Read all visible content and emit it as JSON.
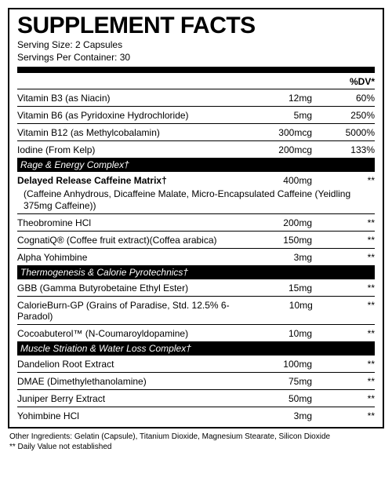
{
  "title": "SUPPLEMENT FACTS",
  "serving_size_label": "Serving Size: 2 Capsules",
  "servings_per_container_label": "Servings Per Container: 30",
  "dv_header": "%DV*",
  "top_rows": [
    {
      "name": "Vitamin B3 (as Niacin)",
      "amount": "12mg",
      "dv": "60%"
    },
    {
      "name": "Vitamin B6 (as Pyridoxine Hydrochloride)",
      "amount": "5mg",
      "dv": "250%"
    },
    {
      "name": "Vitamin B12 (as Methylcobalamin)",
      "amount": "300mcg",
      "dv": "5000%"
    },
    {
      "name": "Iodine (From Kelp)",
      "amount": "200mcg",
      "dv": "133%"
    }
  ],
  "section1": {
    "title": "Rage & Energy Complex†",
    "lead": {
      "name": "Delayed Release Caffeine Matrix†",
      "amount": "400mg",
      "dv": "**",
      "note": "(Caffeine Anhydrous, Dicaffeine Malate, Micro-Encapsulated Caffeine (Yeidling 375mg Caffeine))"
    },
    "rows": [
      {
        "name": "Theobromine HCl",
        "amount": "200mg",
        "dv": "**"
      },
      {
        "name": "CognatiQ® (Coffee fruit extract)(Coffea arabica)",
        "amount": "150mg",
        "dv": "**"
      },
      {
        "name": "Alpha Yohimbine",
        "amount": "3mg",
        "dv": "**"
      }
    ]
  },
  "section2": {
    "title": "Thermogenesis & Calorie Pyrotechnics†",
    "rows": [
      {
        "name": "GBB (Gamma Butyrobetaine Ethyl Ester)",
        "amount": "15mg",
        "dv": "**"
      },
      {
        "name": "CalorieBurn-GP (Grains of Paradise, Std. 12.5% 6-Paradol)",
        "amount": "10mg",
        "dv": "**"
      },
      {
        "name": "Cocoabuterol™ (N-Coumaroyldopamine)",
        "amount": "10mg",
        "dv": "**"
      }
    ]
  },
  "section3": {
    "title": "Muscle Striation & Water Loss Complex†",
    "rows": [
      {
        "name": "Dandelion Root Extract",
        "amount": "100mg",
        "dv": "**"
      },
      {
        "name": "DMAE (Dimethylethanolamine)",
        "amount": "75mg",
        "dv": "**"
      },
      {
        "name": "Juniper Berry Extract",
        "amount": "50mg",
        "dv": "**"
      },
      {
        "name": "Yohimbine HCl",
        "amount": "3mg",
        "dv": "**"
      }
    ]
  },
  "other_ingredients": "Other Ingredients: Gelatin (Capsule), Titanium Dioxide, Magnesium Stearate, Silicon Dioxide",
  "dv_note": "** Daily Value not established"
}
